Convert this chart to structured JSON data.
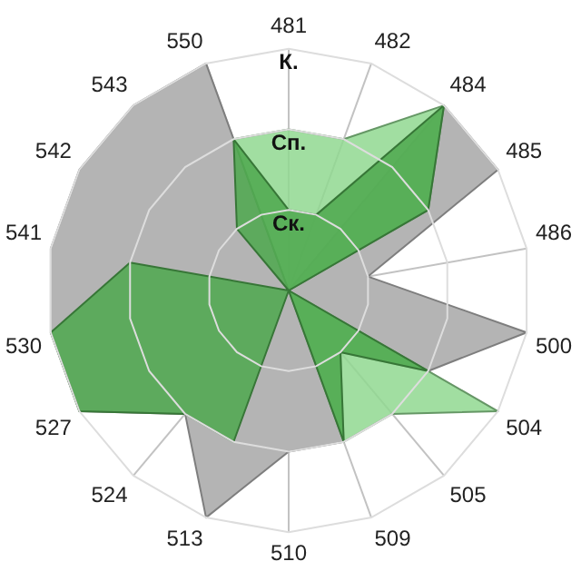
{
  "chart_data": {
    "type": "radar",
    "categories": [
      "481",
      "482",
      "484",
      "485",
      "486",
      "500",
      "504",
      "505",
      "509",
      "510",
      "513",
      "524",
      "527",
      "530",
      "541",
      "542",
      "543",
      "550"
    ],
    "series": [
      {
        "color": "#b4b4b4",
        "values": [
          0,
          0,
          3,
          3,
          1,
          3,
          2,
          1,
          2,
          2,
          3,
          2,
          3,
          3,
          3,
          3,
          3,
          3
        ]
      },
      {
        "color": "#90d890",
        "values": [
          2,
          2,
          3,
          2,
          0,
          0,
          3,
          2,
          2,
          0,
          0,
          0,
          0,
          0,
          0,
          0,
          0,
          2
        ]
      },
      {
        "color": "#4ea84e",
        "values": [
          1,
          1,
          3,
          2,
          0,
          0,
          2,
          1,
          2,
          0,
          2,
          2,
          3,
          3,
          2,
          0,
          1,
          2
        ]
      }
    ],
    "ylim": [
      0,
      3
    ],
    "yticks": [
      {
        "value": 1,
        "label": "Ск."
      },
      {
        "value": 2,
        "label": "Сп."
      },
      {
        "value": 3,
        "label": "К."
      }
    ],
    "grid": true,
    "legend": false,
    "marker": "none"
  }
}
